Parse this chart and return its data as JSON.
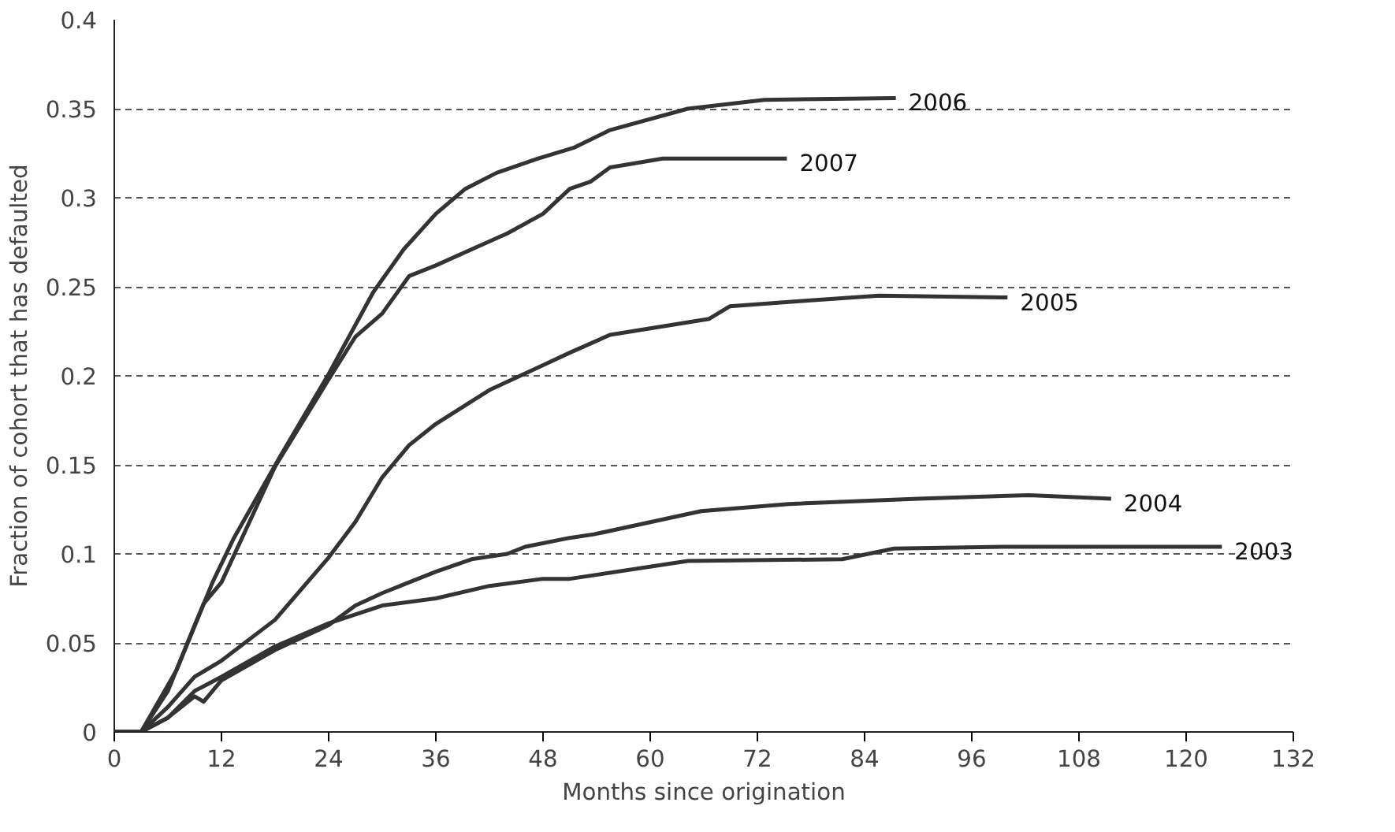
{
  "chart_data": {
    "type": "line",
    "xlabel": "Months since origination",
    "ylabel": "Fraction of cohort that has defaulted",
    "xlim": [
      0,
      132
    ],
    "ylim": [
      0,
      0.4
    ],
    "xticks": [
      0,
      12,
      24,
      36,
      48,
      60,
      72,
      84,
      96,
      108,
      120,
      132
    ],
    "yticks": [
      0,
      0.05,
      0.1,
      0.15,
      0.2,
      0.25,
      0.3,
      0.35,
      0.4
    ],
    "grid": "y",
    "legend": false,
    "marker": "none",
    "line_style": "solid",
    "series": [
      {
        "name": "2006",
        "color": "#333333",
        "x": [
          0,
          3,
          7,
          11,
          13.4,
          18.6,
          24,
          29,
          32.4,
          36,
          39.3,
          42.8,
          47.4,
          51.4,
          55.5,
          64.2,
          72.8,
          87.5
        ],
        "values": [
          0,
          0,
          0.035,
          0.084,
          0.109,
          0.155,
          0.201,
          0.247,
          0.271,
          0.291,
          0.305,
          0.314,
          0.322,
          0.328,
          0.338,
          0.35,
          0.355,
          0.356
        ]
      },
      {
        "name": "2007",
        "color": "#333333",
        "x": [
          0,
          3,
          6,
          9,
          10,
          12,
          18,
          24,
          27,
          30,
          33,
          36,
          40,
          44,
          48,
          51,
          53.3,
          55.5,
          61.4,
          75.3
        ],
        "values": [
          0,
          0,
          0.023,
          0.06,
          0.072,
          0.084,
          0.149,
          0.198,
          0.222,
          0.235,
          0.256,
          0.262,
          0.271,
          0.28,
          0.291,
          0.305,
          0.309,
          0.317,
          0.322,
          0.322
        ]
      },
      {
        "name": "2005",
        "color": "#333333",
        "x": [
          0,
          3,
          6,
          9,
          12,
          18,
          24,
          27,
          30,
          33,
          36,
          42,
          48,
          51,
          55.5,
          66.6,
          68.9,
          77,
          85.6,
          100
        ],
        "values": [
          0,
          0,
          0.014,
          0.031,
          0.04,
          0.063,
          0.098,
          0.118,
          0.143,
          0.161,
          0.173,
          0.192,
          0.206,
          0.213,
          0.223,
          0.232,
          0.239,
          0.242,
          0.245,
          0.244
        ]
      },
      {
        "name": "2004",
        "color": "#333333",
        "x": [
          0,
          3,
          6,
          9,
          10,
          12,
          18,
          24,
          27,
          30,
          33,
          36,
          40,
          44,
          46,
          51,
          53.7,
          65.7,
          75.5,
          90,
          102.4,
          111.6
        ],
        "values": [
          0,
          0,
          0.008,
          0.02,
          0.017,
          0.029,
          0.046,
          0.06,
          0.071,
          0.078,
          0.084,
          0.09,
          0.097,
          0.1,
          0.104,
          0.109,
          0.111,
          0.124,
          0.128,
          0.131,
          0.133,
          0.131
        ]
      },
      {
        "name": "2003",
        "color": "#333333",
        "x": [
          0,
          3,
          6,
          9,
          12,
          18,
          24,
          30,
          36,
          42,
          48,
          51,
          64.2,
          81.5,
          87.3,
          100,
          124
        ],
        "values": [
          0,
          0,
          0.008,
          0.023,
          0.031,
          0.048,
          0.061,
          0.071,
          0.075,
          0.082,
          0.086,
          0.086,
          0.096,
          0.097,
          0.103,
          0.104,
          0.104
        ]
      }
    ]
  }
}
